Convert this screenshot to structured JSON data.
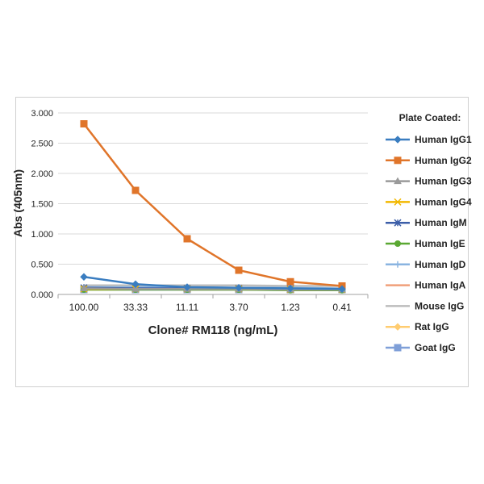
{
  "chart_data": {
    "type": "line",
    "xlabel": "Clone# RM118 (ng/mL)",
    "ylabel": "Abs (405nm)",
    "categories": [
      "100.00",
      "33.33",
      "11.11",
      "3.70",
      "1.23",
      "0.41"
    ],
    "ylim": [
      0,
      3
    ],
    "yticks": [
      "0.000",
      "0.500",
      "1.000",
      "1.500",
      "2.000",
      "2.500",
      "3.000"
    ],
    "grid": true,
    "legend_title": "Plate Coated:",
    "legend_position": "right",
    "series": [
      {
        "name": "Human IgG1",
        "color": "#3a7dc0",
        "marker": "diamond",
        "values": [
          0.29,
          0.17,
          0.12,
          0.11,
          0.1,
          0.09
        ]
      },
      {
        "name": "Human IgG2",
        "color": "#e0752a",
        "marker": "square",
        "values": [
          2.82,
          1.72,
          0.92,
          0.4,
          0.21,
          0.14
        ]
      },
      {
        "name": "Human IgG3",
        "color": "#9a9a9a",
        "marker": "triangle",
        "values": [
          0.1,
          0.09,
          0.09,
          0.09,
          0.08,
          0.08
        ]
      },
      {
        "name": "Human IgG4",
        "color": "#f2b800",
        "marker": "x",
        "values": [
          0.09,
          0.09,
          0.09,
          0.09,
          0.08,
          0.08
        ]
      },
      {
        "name": "Human IgM",
        "color": "#3c5ea8",
        "marker": "star",
        "values": [
          0.11,
          0.1,
          0.1,
          0.1,
          0.09,
          0.09
        ]
      },
      {
        "name": "Human IgE",
        "color": "#5aa832",
        "marker": "circle",
        "values": [
          0.08,
          0.08,
          0.08,
          0.08,
          0.07,
          0.07
        ]
      },
      {
        "name": "Human IgD",
        "color": "#8ab4e0",
        "marker": "plus",
        "values": [
          0.12,
          0.12,
          0.12,
          0.11,
          0.11,
          0.1
        ]
      },
      {
        "name": "Human IgA",
        "color": "#f0a07a",
        "marker": "dash",
        "values": [
          0.09,
          0.09,
          0.08,
          0.08,
          0.08,
          0.08
        ]
      },
      {
        "name": "Mouse IgG",
        "color": "#bdbdbd",
        "marker": "none",
        "values": [
          0.15,
          0.15,
          0.15,
          0.15,
          0.14,
          0.14
        ]
      },
      {
        "name": "Rat IgG",
        "color": "#ffcc70",
        "marker": "diamond",
        "values": [
          0.1,
          0.1,
          0.1,
          0.1,
          0.09,
          0.09
        ]
      },
      {
        "name": "Goat IgG",
        "color": "#7f9fd8",
        "marker": "square",
        "values": [
          0.08,
          0.08,
          0.08,
          0.08,
          0.08,
          0.08
        ]
      }
    ]
  }
}
